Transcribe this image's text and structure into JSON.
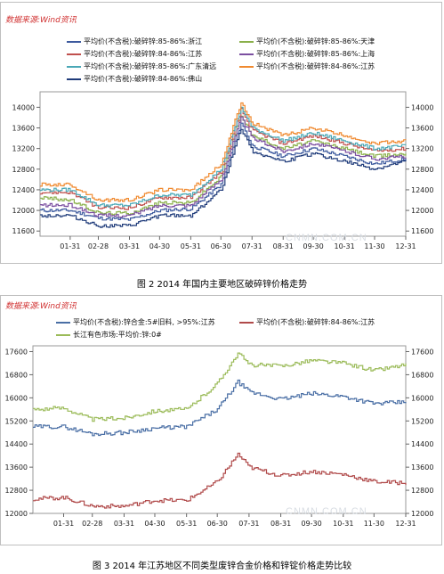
{
  "source_label": "数据来源:Wind资讯",
  "watermark": "CNMN.COM.CN",
  "chart1": {
    "caption": "图 2 2014 年国内主要地区破碎锌价格走势",
    "chart_data": {
      "type": "line",
      "x_ticks": [
        "01-31",
        "02-28",
        "03-31",
        "04-30",
        "05-31",
        "06-30",
        "07-31",
        "08-31",
        "09-30",
        "10-31",
        "11-30",
        "12-31"
      ],
      "y_ticks": [
        11600,
        12000,
        12400,
        12800,
        13200,
        13600,
        14000
      ],
      "ylim": [
        11500,
        14300
      ],
      "grid": false,
      "legend_position": "top",
      "key_points_x": [
        "01-01",
        "01-31",
        "02-28",
        "03-31",
        "04-30",
        "05-31",
        "06-30",
        "07-20",
        "07-31",
        "08-31",
        "09-30",
        "10-31",
        "11-30",
        "12-31"
      ],
      "series": [
        {
          "name": "平均价(不含税):破碎锌:85-86%:浙江",
          "color": "#3d5a9e",
          "values": [
            12000,
            12000,
            11850,
            11820,
            12000,
            12030,
            12500,
            13700,
            13250,
            13050,
            13200,
            13050,
            12900,
            13000
          ]
        },
        {
          "name": "平均价(不含税):破碎锌:85-86%:天津",
          "color": "#8ab04a",
          "values": [
            12250,
            12200,
            11950,
            11950,
            12150,
            12150,
            12650,
            13850,
            13450,
            13200,
            13350,
            13200,
            13050,
            13100
          ]
        },
        {
          "name": "平均价(不含税):破碎锌:84-86%:江苏",
          "color": "#c0504d",
          "values": [
            12350,
            12350,
            12050,
            12050,
            12250,
            12250,
            12750,
            13950,
            13550,
            13300,
            13450,
            13300,
            13150,
            13200
          ]
        },
        {
          "name": "平均价(不含税):破碎锌:85-86%:上海",
          "color": "#7b4fa0",
          "values": [
            12100,
            12100,
            11900,
            11900,
            12100,
            12100,
            12600,
            13800,
            13400,
            13150,
            13300,
            13150,
            13000,
            13050
          ]
        },
        {
          "name": "平均价(不含税):破碎锌:85-86%:广东清远",
          "color": "#4aa8b6",
          "values": [
            12400,
            12400,
            12100,
            12100,
            12300,
            12300,
            12800,
            14000,
            13600,
            13350,
            13500,
            13350,
            13200,
            13250
          ]
        },
        {
          "name": "平均价(不含税):破碎锌:84-86%:江苏",
          "color": "#f08a30",
          "values": [
            12500,
            12500,
            12200,
            12200,
            12400,
            12400,
            12900,
            14100,
            13700,
            13450,
            13600,
            13450,
            13300,
            13350
          ]
        },
        {
          "name": "平均价(不含税):破碎锌:84-86%:佛山",
          "color": "#1f3b7a",
          "values": [
            11900,
            11900,
            11700,
            11700,
            11900,
            11900,
            12400,
            13600,
            13150,
            12950,
            13100,
            12950,
            12800,
            12950
          ]
        }
      ]
    }
  },
  "chart2": {
    "caption": "图 3 2014 年江苏地区不同类型废锌合金价格和锌锭价格走势比较",
    "chart_data": {
      "type": "line",
      "x_ticks": [
        "01-31",
        "02-28",
        "03-31",
        "04-30",
        "05-31",
        "06-30",
        "07-31",
        "08-31",
        "09-30",
        "10-31",
        "11-30",
        "12-31"
      ],
      "y_ticks": [
        12000,
        12800,
        13600,
        14400,
        15200,
        16000,
        16800,
        17600
      ],
      "ylim": [
        12000,
        17800
      ],
      "grid": false,
      "legend_position": "top",
      "key_points_x": [
        "01-01",
        "01-31",
        "02-28",
        "03-31",
        "04-30",
        "05-31",
        "06-30",
        "07-20",
        "07-31",
        "08-31",
        "09-30",
        "10-31",
        "11-30",
        "12-31"
      ],
      "series": [
        {
          "name": "平均价(不含税):锌合金:5#旧料, >95%:江苏",
          "color": "#4a6fa5",
          "values": [
            15000,
            15000,
            14750,
            14800,
            14950,
            15000,
            15600,
            16550,
            16200,
            15950,
            16150,
            16050,
            15800,
            15850
          ]
        },
        {
          "name": "平均价(不含税):破碎锌:84-86%:江苏",
          "color": "#b04a4a",
          "values": [
            12500,
            12550,
            12250,
            12250,
            12450,
            12450,
            13100,
            14050,
            13600,
            13300,
            13450,
            13350,
            13100,
            13050
          ]
        },
        {
          "name": "长江有色市场:平均价:锌:0#",
          "color": "#9bbb59",
          "values": [
            15600,
            15650,
            15250,
            15300,
            15550,
            15600,
            16500,
            17550,
            17150,
            17100,
            17300,
            17200,
            16950,
            17150
          ]
        }
      ]
    }
  }
}
